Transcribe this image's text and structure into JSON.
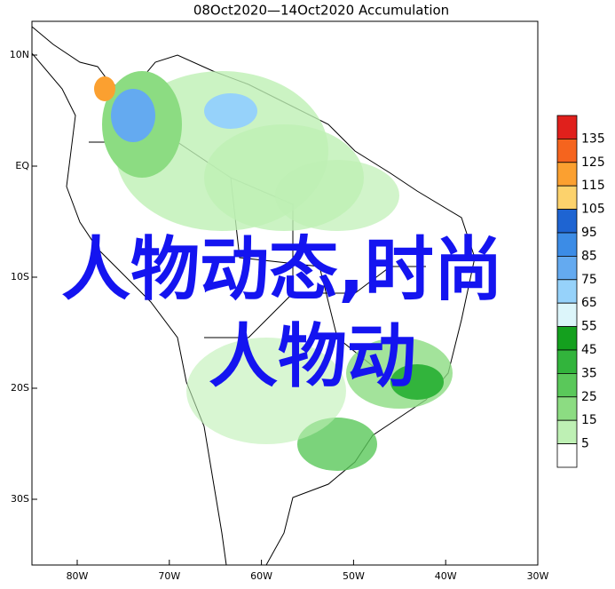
{
  "title": "08Oct2020—14Oct2020 Accumulation",
  "lat_labels": [
    "10N",
    "EQ",
    "10S",
    "20S",
    "30S"
  ],
  "lon_labels": [
    "80W",
    "70W",
    "60W",
    "50W",
    "40W",
    "30W"
  ],
  "colorbar": {
    "labels": [
      135,
      125,
      115,
      105,
      95,
      85,
      75,
      65,
      55,
      45,
      35,
      25,
      15,
      5
    ],
    "colors": [
      "#e0201c",
      "#f5641e",
      "#fba030",
      "#fcd26c",
      "#1e64d2",
      "#3c8ce6",
      "#64aaf0",
      "#96d2fa",
      "#dcf5fa",
      "#14a01e",
      "#32b43c",
      "#5ac85a",
      "#8cdc82",
      "#bef0b4",
      "#ffffff"
    ]
  },
  "overlay": {
    "line1": "人物动态,时尚",
    "line2": "人物动"
  }
}
